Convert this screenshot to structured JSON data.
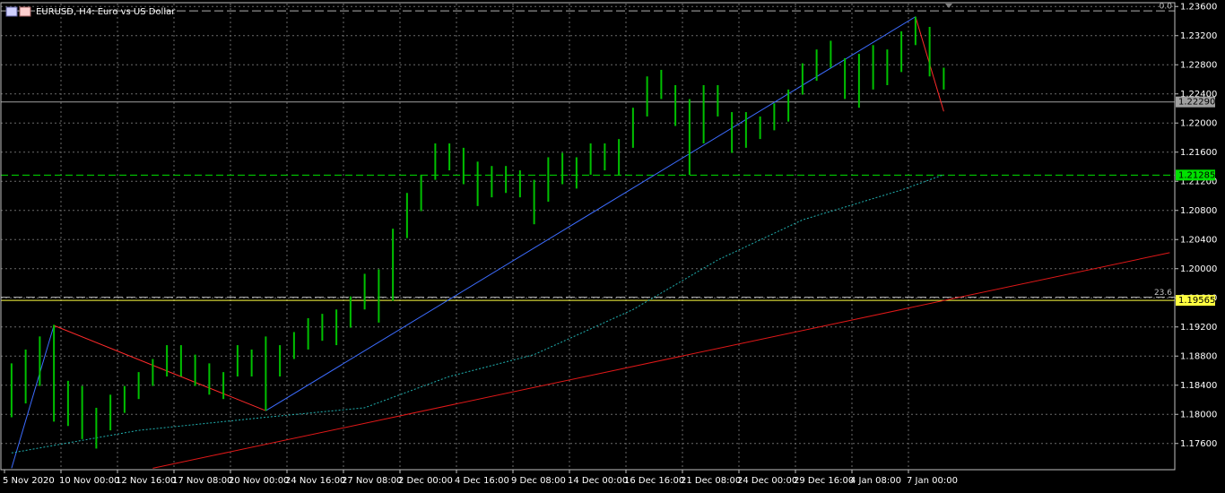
{
  "chart_data": {
    "type": "range-bar",
    "title": "EURUSD, H4:  Euro vs US Dollar",
    "color": "#00c000",
    "categories": [
      "5 Nov 2020",
      null,
      null,
      null,
      "10 Nov 00:00",
      null,
      null,
      null,
      "12 Nov 16:00",
      null,
      null,
      null,
      "17 Nov 08:00",
      null,
      null,
      null,
      "20 Nov 00:00",
      null,
      null,
      null,
      "24 Nov 16:00",
      null,
      null,
      null,
      "27 Nov 08:00",
      null,
      null,
      null,
      "2 Dec 00:00",
      null,
      null,
      null,
      "4 Dec 16:00",
      null,
      null,
      null,
      "9 Dec 08:00",
      null,
      null,
      null,
      "14 Dec 00:00",
      null,
      null,
      null,
      "16 Dec 16:00",
      null,
      null,
      null,
      "21 Dec 08:00",
      null,
      null,
      null,
      "24 Dec 00:00",
      null,
      null,
      null,
      "29 Dec 16:00",
      null,
      null,
      null,
      "4 Jan 08:00",
      null,
      null,
      null,
      "7 Jan 00:00",
      null,
      null
    ],
    "high": [
      1.187,
      1.1889,
      1.1907,
      1.1923,
      1.1846,
      1.1839,
      1.1809,
      1.1827,
      1.1839,
      1.1858,
      1.1876,
      1.1895,
      1.1895,
      1.1882,
      1.187,
      1.1858,
      1.1895,
      1.1889,
      1.1907,
      1.1895,
      1.1913,
      1.1932,
      1.1938,
      1.1944,
      1.1962,
      1.1993,
      1.1999,
      1.2055,
      1.2104,
      1.2129,
      1.2172,
      1.2172,
      1.2166,
      1.2147,
      1.2141,
      1.2141,
      1.2135,
      1.2122,
      1.2153,
      1.2159,
      1.2153,
      1.2172,
      1.2172,
      1.2178,
      1.2221,
      1.2264,
      1.2273,
      1.2252,
      1.2233,
      1.2252,
      1.2252,
      1.2215,
      1.2215,
      1.2209,
      1.2227,
      1.2246,
      1.2282,
      1.2301,
      1.2313,
      1.2289,
      1.2295,
      1.2307,
      1.2301,
      1.2326,
      1.2346,
      1.2332,
      1.2276
    ],
    "low": [
      1.1796,
      1.1815,
      1.1839,
      1.179,
      1.1784,
      1.1766,
      1.1753,
      1.1778,
      1.1802,
      1.1821,
      1.1839,
      1.1852,
      1.1852,
      1.1839,
      1.1827,
      1.1821,
      1.1852,
      1.1852,
      1.1805,
      1.1852,
      1.1876,
      1.1889,
      1.1901,
      1.1895,
      1.1919,
      1.1944,
      1.1926,
      1.1956,
      1.2042,
      1.2079,
      1.2122,
      1.2135,
      1.2116,
      1.2086,
      1.2098,
      1.2104,
      1.2098,
      1.2061,
      1.2092,
      1.2116,
      1.211,
      1.2129,
      1.2135,
      1.2129,
      1.2166,
      1.2209,
      1.2233,
      1.2196,
      1.2129,
      1.2172,
      1.2209,
      1.2159,
      1.2166,
      1.2178,
      1.219,
      1.2202,
      1.2239,
      1.2258,
      1.2276,
      1.2233,
      1.2221,
      1.2246,
      1.2252,
      1.227,
      1.2307,
      1.2264,
      1.2246
    ],
    "lines": [
      {
        "x": [
          0,
          3,
          18,
          64,
          66
        ],
        "values": [
          1.1726,
          1.1922,
          1.1805,
          1.2346,
          1.2216
        ],
        "colors": [
          "#3c6cff",
          "#ff2a2a",
          "#3c6cff",
          "#ff2a2a"
        ],
        "style": "solid"
      },
      {
        "x": [
          0,
          9,
          18,
          25,
          31,
          37,
          44,
          50,
          56,
          63,
          66
        ],
        "values": [
          1.1747,
          1.1778,
          1.1796,
          1.1809,
          1.1852,
          1.1882,
          1.1944,
          1.2012,
          1.2067,
          1.2108,
          1.2129
        ],
        "colors": [
          "#20b0b0"
        ],
        "style": "dotted"
      },
      {
        "x": [
          10,
          82
        ],
        "values": [
          1.1726,
          1.2022
        ],
        "colors": [
          "#e01818"
        ],
        "style": "solid"
      }
    ],
    "hlines": [
      {
        "value": 1.2229,
        "label": "1.22290",
        "color": "#a0a0a0",
        "style": "solid",
        "box": "#a0a0a0"
      },
      {
        "value": 1.21285,
        "label": "1.21285",
        "color": "#00e000",
        "style": "dashed",
        "box": "#00e000"
      },
      {
        "value": 1.19565,
        "label": "1.19565",
        "color": "#ffff40",
        "style": "solid",
        "box": "#ffff40"
      }
    ],
    "fibo": [
      {
        "value": 1.2354,
        "label": "0.0"
      },
      {
        "value": 1.1961,
        "label": "23.6"
      }
    ],
    "ylim": [
      1.1724,
      1.2364
    ],
    "yticks": [
      {
        "value": 1.236,
        "label": "1.23600"
      },
      {
        "value": 1.232,
        "label": "1.23200"
      },
      {
        "value": 1.228,
        "label": "1.22800"
      },
      {
        "value": 1.224,
        "label": "1.22400"
      },
      {
        "value": 1.22,
        "label": "1.22000"
      },
      {
        "value": 1.216,
        "label": "1.21600"
      },
      {
        "value": 1.212,
        "label": "1.21200"
      },
      {
        "value": 1.208,
        "label": "1.20800"
      },
      {
        "value": 1.204,
        "label": "1.20400"
      },
      {
        "value": 1.2,
        "label": "1.20000"
      },
      {
        "value": 1.196,
        "label": "1.19600"
      },
      {
        "value": 1.192,
        "label": "1.19200"
      },
      {
        "value": 1.188,
        "label": "1.18800"
      },
      {
        "value": 1.184,
        "label": "1.18400"
      },
      {
        "value": 1.18,
        "label": "1.18000"
      },
      {
        "value": 1.176,
        "label": "1.17600"
      }
    ],
    "grid": true
  }
}
